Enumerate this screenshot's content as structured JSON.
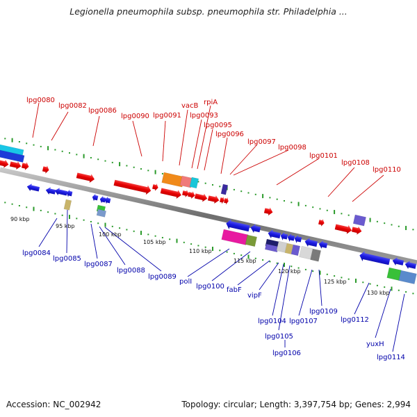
{
  "title": "Legionella pneumophila subsp. pneumophila str. Philadelphia ...",
  "footer": {
    "accession": "Accession: NC_002942",
    "summary": "Topology: circular; Length: 3,397,754 bp; Genes: 2,994"
  },
  "colors": {
    "forward": "#e60000",
    "reverse": "#1a1adf",
    "backbone": "#7a7a7a",
    "tick": "#2a9a2a",
    "label_top": "#cc0000",
    "label_bottom": "#0000aa"
  },
  "top_genes": [
    {
      "name": "lpg0080"
    },
    {
      "name": "lpg0082"
    },
    {
      "name": "lpg0086"
    },
    {
      "name": "lpg0090"
    },
    {
      "name": "lpg0091"
    },
    {
      "name": "vacB"
    },
    {
      "name": "lpg0093"
    },
    {
      "name": "rpiA"
    },
    {
      "name": "lpg0095"
    },
    {
      "name": "lpg0096"
    },
    {
      "name": "lpg0097"
    },
    {
      "name": "lpg0098"
    },
    {
      "name": "lpg0101"
    },
    {
      "name": "lpg0108"
    },
    {
      "name": "lpg0110"
    }
  ],
  "bottom_genes": [
    {
      "name": "lpg0084"
    },
    {
      "name": "lpg0085"
    },
    {
      "name": "lpg0087"
    },
    {
      "name": "lpg0088"
    },
    {
      "name": "lpg0089"
    },
    {
      "name": "polI"
    },
    {
      "name": "lpg0100"
    },
    {
      "name": "fabF"
    },
    {
      "name": "vipF"
    },
    {
      "name": "lpg0104"
    },
    {
      "name": "lpg0105"
    },
    {
      "name": "lpg0106"
    },
    {
      "name": "lpg0107"
    },
    {
      "name": "lpg0109"
    },
    {
      "name": "lpg0112"
    },
    {
      "name": "yuxH"
    },
    {
      "name": "lpg0114"
    }
  ],
  "scale_ticks": [
    {
      "label": "90 kbp"
    },
    {
      "label": "95 kbp"
    },
    {
      "label": "100 kbp"
    },
    {
      "label": "105 kbp"
    },
    {
      "label": "110 kbp"
    },
    {
      "label": "115 kbp"
    },
    {
      "label": "120 kbp"
    },
    {
      "label": "125 kbp"
    },
    {
      "label": "130 kbp"
    }
  ]
}
